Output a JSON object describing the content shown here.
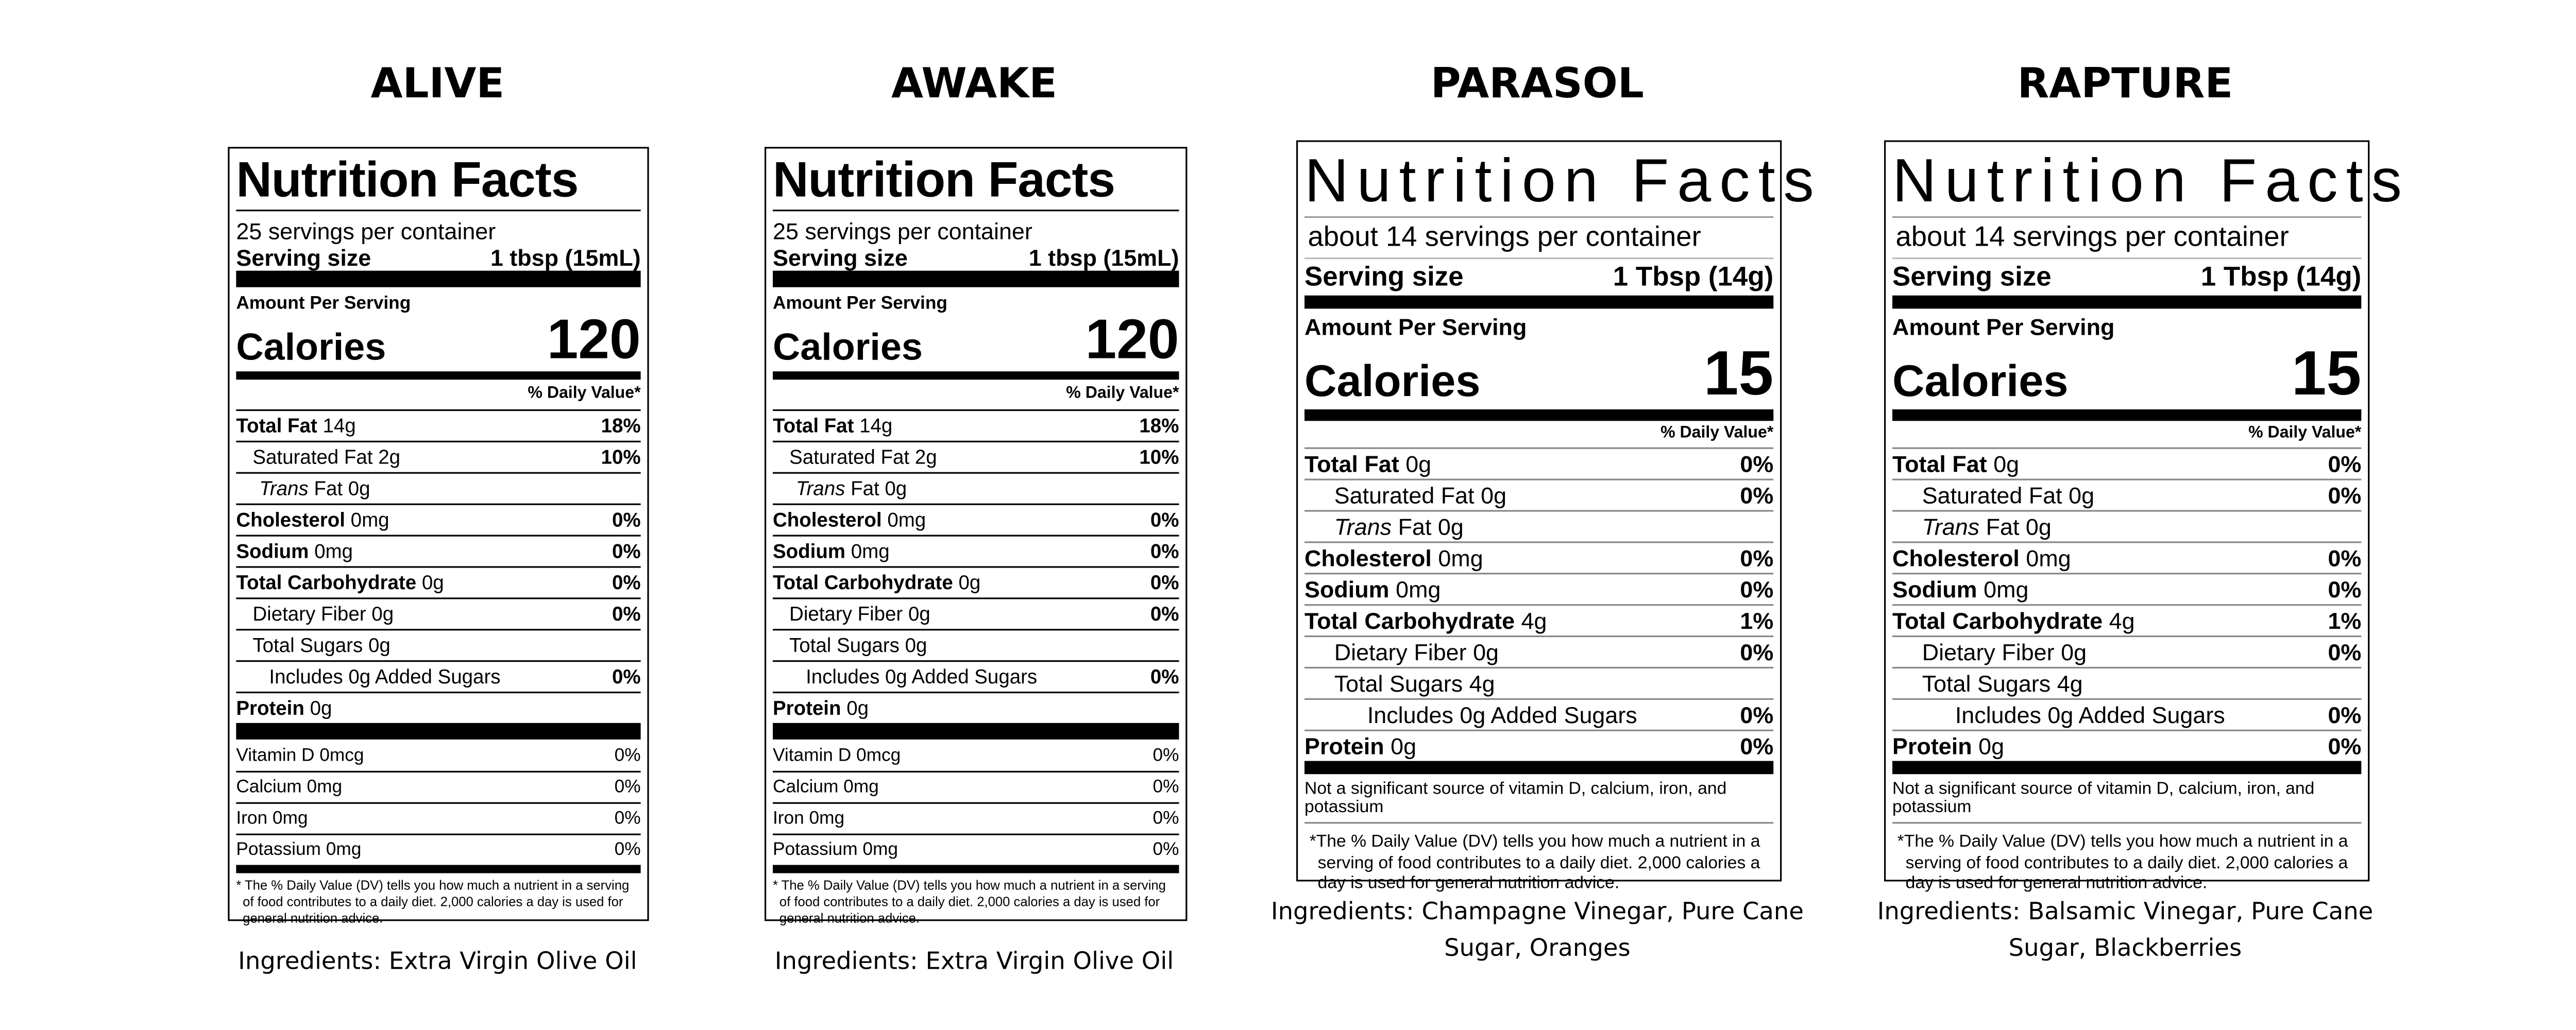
{
  "products": [
    {
      "name": "ALIVE",
      "label": {
        "title": "Nutrition Facts",
        "servings": "25 servings per container",
        "serving_size_label": "Serving size",
        "serving_size": "1 tbsp (15mL)",
        "amount_per_serving": "Amount Per Serving",
        "calories_label": "Calories",
        "calories": "120",
        "daily_value_header": "% Daily Value*",
        "nutrients": [
          {
            "name": "Total Fat",
            "amount": "14g",
            "dv": "18%"
          },
          {
            "name": "Saturated Fat",
            "amount": "2g",
            "dv": "10%"
          },
          {
            "name": "Trans",
            "amount": "Fat 0g"
          },
          {
            "name": "Cholesterol",
            "amount": "0mg",
            "dv": "0%"
          },
          {
            "name": "Sodium",
            "amount": "0mg",
            "dv": "0%"
          },
          {
            "name": "Total Carbohydrate",
            "amount": "0g",
            "dv": "0%"
          },
          {
            "name": "Dietary Fiber",
            "amount": "0g",
            "dv": "0%"
          },
          {
            "name": "Total Sugars",
            "amount": "0g"
          },
          {
            "name": "Includes 0g Added Sugars",
            "dv": "0%"
          },
          {
            "name": "Protein",
            "amount": "0g"
          }
        ],
        "vitamins": [
          {
            "name": "Vitamin D 0mcg",
            "dv": "0%"
          },
          {
            "name": "Calcium 0mg",
            "dv": "0%"
          },
          {
            "name": "Iron 0mg",
            "dv": "0%"
          },
          {
            "name": "Potassium 0mg",
            "dv": "0%"
          }
        ],
        "footnote": "* The % Daily Value (DV) tells you how much a nutrient in a serving of food contributes to a daily diet. 2,000 calories a day is used for general nutrition advice."
      },
      "ingredients": "Ingredients: Extra Virgin Olive Oil"
    },
    {
      "name": "AWAKE",
      "label": {
        "title": "Nutrition Facts",
        "servings": "25 servings per container",
        "serving_size_label": "Serving size",
        "serving_size": "1 tbsp (15mL)",
        "amount_per_serving": "Amount Per Serving",
        "calories_label": "Calories",
        "calories": "120",
        "daily_value_header": "% Daily Value*",
        "nutrients": [
          {
            "name": "Total Fat",
            "amount": "14g",
            "dv": "18%"
          },
          {
            "name": "Saturated Fat",
            "amount": "2g",
            "dv": "10%"
          },
          {
            "name": "Trans",
            "amount": "Fat 0g"
          },
          {
            "name": "Cholesterol",
            "amount": "0mg",
            "dv": "0%"
          },
          {
            "name": "Sodium",
            "amount": "0mg",
            "dv": "0%"
          },
          {
            "name": "Total Carbohydrate",
            "amount": "0g",
            "dv": "0%"
          },
          {
            "name": "Dietary Fiber",
            "amount": "0g",
            "dv": "0%"
          },
          {
            "name": "Total Sugars",
            "amount": "0g"
          },
          {
            "name": "Includes 0g Added Sugars",
            "dv": "0%"
          },
          {
            "name": "Protein",
            "amount": "0g"
          }
        ],
        "vitamins": [
          {
            "name": "Vitamin D 0mcg",
            "dv": "0%"
          },
          {
            "name": "Calcium 0mg",
            "dv": "0%"
          },
          {
            "name": "Iron 0mg",
            "dv": "0%"
          },
          {
            "name": "Potassium 0mg",
            "dv": "0%"
          }
        ],
        "footnote": "* The % Daily Value (DV) tells you how much a nutrient in a serving of food contributes to a daily diet. 2,000 calories a day is used for general nutrition advice."
      },
      "ingredients": "Ingredients: Extra Virgin Olive Oil"
    },
    {
      "name": "PARASOL",
      "label": {
        "title": "Nutrition Facts",
        "servings": "about 14 servings per container",
        "serving_size_label": "Serving size",
        "serving_size": "1 Tbsp (14g)",
        "amount_per_serving": "Amount Per Serving",
        "calories_label": "Calories",
        "calories": "15",
        "daily_value_header": "% Daily Value*",
        "nutrients": [
          {
            "name": "Total Fat",
            "amount": "0g",
            "dv": "0%"
          },
          {
            "name": "Saturated Fat",
            "amount": "0g",
            "dv": "0%"
          },
          {
            "name": "Trans",
            "amount": "Fat 0g"
          },
          {
            "name": "Cholesterol",
            "amount": "0mg",
            "dv": "0%"
          },
          {
            "name": "Sodium",
            "amount": "0mg",
            "dv": "0%"
          },
          {
            "name": "Total Carbohydrate",
            "amount": "4g",
            "dv": "1%"
          },
          {
            "name": "Dietary Fiber",
            "amount": "0g",
            "dv": "0%"
          },
          {
            "name": "Total Sugars",
            "amount": "4g"
          },
          {
            "name": "Includes 0g Added Sugars",
            "dv": "0%"
          },
          {
            "name": "Protein",
            "amount": "0g",
            "dv": "0%"
          }
        ],
        "note": "Not a significant source of vitamin D, calcium, iron, and potassium",
        "footnote": "*The % Daily Value (DV) tells you how much a nutrient in a serving of food contributes to a daily diet. 2,000 calories a day is used for general nutrition advice."
      },
      "ingredients": "Ingredients: Champagne Vinegar, Pure Cane Sugar, Oranges"
    },
    {
      "name": "RAPTURE",
      "label": {
        "title": "Nutrition Facts",
        "servings": "about 14 servings per container",
        "serving_size_label": "Serving size",
        "serving_size": "1 Tbsp (14g)",
        "amount_per_serving": "Amount Per Serving",
        "calories_label": "Calories",
        "calories": "15",
        "daily_value_header": "% Daily Value*",
        "nutrients": [
          {
            "name": "Total Fat",
            "amount": "0g",
            "dv": "0%"
          },
          {
            "name": "Saturated Fat",
            "amount": "0g",
            "dv": "0%"
          },
          {
            "name": "Trans",
            "amount": "Fat 0g"
          },
          {
            "name": "Cholesterol",
            "amount": "0mg",
            "dv": "0%"
          },
          {
            "name": "Sodium",
            "amount": "0mg",
            "dv": "0%"
          },
          {
            "name": "Total Carbohydrate",
            "amount": "4g",
            "dv": "1%"
          },
          {
            "name": "Dietary Fiber",
            "amount": "0g",
            "dv": "0%"
          },
          {
            "name": "Total Sugars",
            "amount": "4g"
          },
          {
            "name": "Includes 0g Added Sugars",
            "dv": "0%"
          },
          {
            "name": "Protein",
            "amount": "0g",
            "dv": "0%"
          }
        ],
        "note": "Not a significant source of vitamin D, calcium, iron, and potassium",
        "footnote": "*The % Daily Value (DV) tells you how much a nutrient in a serving of food contributes to a daily diet. 2,000 calories a day is used for general nutrition advice."
      },
      "ingredients": "Ingredients: Balsamic Vinegar, Pure Cane Sugar, Blackberries"
    }
  ]
}
